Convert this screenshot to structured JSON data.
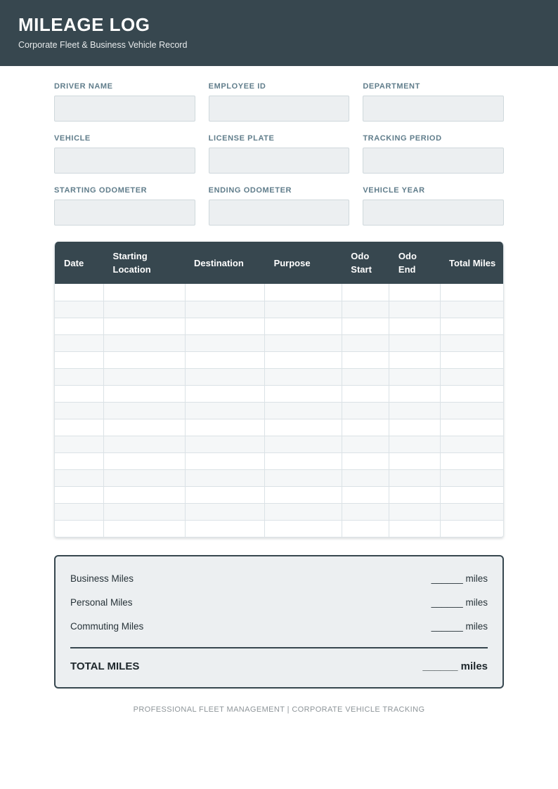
{
  "header": {
    "title": "MILEAGE LOG",
    "subtitle": "Corporate Fleet & Business Vehicle Record"
  },
  "fields": [
    {
      "label": "DRIVER NAME",
      "value": ""
    },
    {
      "label": "EMPLOYEE ID",
      "value": ""
    },
    {
      "label": "DEPARTMENT",
      "value": ""
    },
    {
      "label": "VEHICLE",
      "value": ""
    },
    {
      "label": "LICENSE PLATE",
      "value": ""
    },
    {
      "label": "TRACKING PERIOD",
      "value": ""
    },
    {
      "label": "STARTING ODOMETER",
      "value": ""
    },
    {
      "label": "ENDING ODOMETER",
      "value": ""
    },
    {
      "label": "VEHICLE YEAR",
      "value": ""
    }
  ],
  "table": {
    "columns": [
      "Date",
      "Starting Location",
      "Destination",
      "Purpose",
      "Odo Start",
      "Odo End",
      "Total Miles"
    ],
    "column_widths_pct": [
      10.9,
      18.1,
      17.8,
      17.2,
      10.6,
      11.3,
      14.1
    ],
    "empty_row_count": 15,
    "rows": []
  },
  "summary": {
    "rows": [
      {
        "label": "Business Miles",
        "value": "______",
        "unit": "miles"
      },
      {
        "label": "Personal Miles",
        "value": "______",
        "unit": "miles"
      },
      {
        "label": "Commuting Miles",
        "value": "______",
        "unit": "miles"
      }
    ],
    "total": {
      "label": "TOTAL MILES",
      "value": "______",
      "unit": "miles"
    }
  },
  "footer": {
    "text": "PROFESSIONAL FLEET MANAGEMENT | CORPORATE VEHICLE TRACKING"
  },
  "colors": {
    "header_bg": "#37474F",
    "label_text": "#607D8B",
    "input_bg": "#ECEFF1",
    "input_border": "#CFD8DC",
    "row_alt_bg": "#F5F7F8",
    "cell_border": "#DBE2E6",
    "summary_bg": "#ECEFF1",
    "summary_border": "#37474F",
    "body_text": "#263238",
    "footer_text": "#8E9599"
  }
}
